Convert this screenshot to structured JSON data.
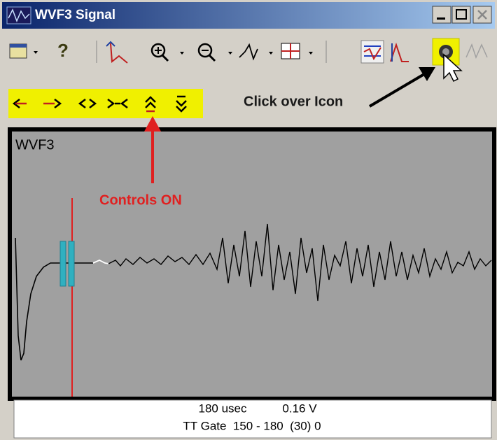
{
  "window": {
    "title": "WVF3 Signal"
  },
  "annotations": {
    "click_hint": "Click over Icon",
    "controls_hint": "Controls ON"
  },
  "plot": {
    "label": "WVF3"
  },
  "status": {
    "time": "180 usec",
    "voltage": "0.16 V",
    "gate": "TT Gate  150 - 180  (30) 0"
  }
}
